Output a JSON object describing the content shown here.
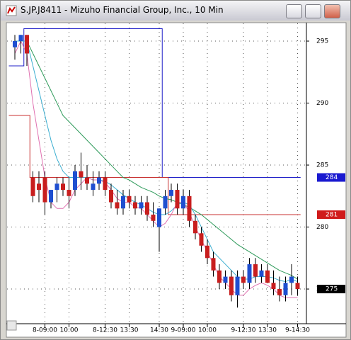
{
  "window_title": "S.JP.J8411 - Mizuho Financial Group, Inc., 10 Min",
  "chart_data": {
    "type": "candlestick",
    "categories": [
      null,
      null,
      null,
      null,
      null,
      "8-09:00",
      null,
      null,
      null,
      "10:00",
      null,
      null,
      null,
      null,
      null,
      "8-12:30",
      null,
      null,
      null,
      "13:30",
      null,
      null,
      null,
      null,
      "14:30",
      null,
      null,
      null,
      "9-09:00",
      null,
      null,
      null,
      "10:00",
      null,
      null,
      null,
      null,
      null,
      "9-12:30",
      null,
      null,
      null,
      "13:30",
      null,
      null,
      null,
      null,
      "9-14:30"
    ],
    "open": [
      294.5,
      295,
      295.5,
      284,
      283.5,
      284,
      282,
      283,
      283.5,
      283,
      283,
      284.5,
      284,
      283,
      283.5,
      284,
      283,
      282,
      281.5,
      282.5,
      282,
      281.5,
      282,
      281,
      280,
      281.5,
      282.5,
      283,
      281.5,
      282.5,
      280.5,
      279.5,
      278.5,
      277.5,
      276.5,
      275.5,
      276,
      274.5,
      276,
      275.5,
      277,
      276,
      276.5,
      275.5,
      275,
      274.5,
      275.5,
      275.5
    ],
    "high": [
      295.5,
      295.5,
      295.5,
      284.5,
      284.5,
      284.5,
      283,
      284,
      284,
      284,
      285,
      286,
      285,
      284.5,
      284.5,
      284.5,
      283.5,
      283,
      283,
      283,
      282.5,
      282.5,
      282.5,
      282,
      281.5,
      283,
      283.5,
      283.5,
      283,
      283,
      281,
      280,
      279,
      278,
      277,
      276.5,
      276.5,
      276.5,
      276.5,
      277.5,
      277.5,
      277,
      277,
      276.5,
      276,
      276,
      277,
      276
    ],
    "low": [
      293.5,
      294,
      293,
      282,
      282,
      281,
      281.5,
      282,
      282.5,
      281.5,
      282.5,
      283,
      283,
      282.5,
      283,
      282.5,
      281.5,
      281,
      281,
      281.5,
      281,
      281,
      280.5,
      280,
      278,
      281,
      282,
      281,
      281,
      280,
      279,
      278,
      277,
      276,
      275,
      275,
      274,
      273.5,
      275,
      275,
      275.5,
      275.5,
      275.5,
      274.5,
      274,
      274,
      274.5,
      274.5
    ],
    "close": [
      295,
      295.5,
      294,
      282.5,
      283,
      282,
      283,
      283.5,
      283,
      282.5,
      284.5,
      284,
      283.5,
      283.5,
      284,
      283,
      282,
      281.5,
      282.5,
      282,
      281.5,
      282,
      281,
      280.5,
      281.5,
      282.5,
      283,
      281.5,
      282.5,
      280.5,
      279.5,
      278.5,
      277.5,
      276.5,
      275.5,
      276,
      274.5,
      276,
      275.5,
      277,
      276,
      276.5,
      275.5,
      275,
      274.5,
      275.5,
      276,
      275
    ],
    "up_color": "#1f4fd0",
    "down_color": "#c81e1e",
    "series": [
      {
        "color": "#2020c8",
        "step": true,
        "values": [
          293,
          293,
          296,
          296,
          296,
          296,
          296,
          296,
          296,
          296,
          296,
          296,
          296,
          296,
          296,
          296,
          296,
          296,
          296,
          296,
          296,
          296,
          296,
          296,
          296,
          284,
          284,
          284,
          284,
          284,
          284,
          284,
          284,
          284,
          284,
          284,
          284,
          284,
          284,
          284,
          284,
          284,
          284,
          284,
          284,
          284,
          284,
          284
        ]
      },
      {
        "color": "#c83232",
        "step": true,
        "values": [
          289,
          289,
          289,
          284,
          284,
          284,
          284,
          284,
          284,
          284,
          284,
          284,
          284,
          284,
          284,
          284,
          284,
          284,
          284,
          284,
          284,
          284,
          284,
          284,
          284,
          284,
          281,
          281,
          281,
          281,
          281,
          281,
          281,
          281,
          281,
          281,
          281,
          281,
          281,
          281,
          281,
          281,
          281,
          281,
          281,
          281,
          281,
          281
        ]
      },
      {
        "color": "#2e9a5a",
        "values": [
          295,
          295,
          295,
          294,
          293,
          292,
          291,
          290,
          289,
          288.5,
          288,
          287.5,
          287,
          286.5,
          286,
          285.5,
          285,
          284.5,
          284,
          283.8,
          283.5,
          283.2,
          283,
          282.8,
          282.5,
          282.3,
          282.2,
          282,
          281.8,
          281.6,
          281.3,
          281,
          280.6,
          280.2,
          279.8,
          279.4,
          279,
          278.6,
          278.3,
          278,
          277.7,
          277.4,
          277.1,
          276.8,
          276.5,
          276.3,
          276.1,
          275.8
        ]
      },
      {
        "color": "#3aaed0",
        "values": [
          295,
          295,
          295,
          293,
          291,
          289,
          287,
          285.5,
          284.5,
          284,
          284,
          284,
          284,
          283.8,
          283.8,
          283.7,
          283.4,
          283,
          282.6,
          282.3,
          282,
          281.8,
          281.5,
          281.2,
          281,
          281,
          281.3,
          281.8,
          282,
          281.8,
          281,
          280,
          279,
          278,
          277.5,
          277,
          276.5,
          276,
          275.8,
          275.8,
          276,
          276,
          276,
          275.9,
          275.7,
          275.6,
          275.8,
          275.6
        ]
      },
      {
        "color": "#e070b0",
        "values": [
          294,
          295,
          294,
          290,
          287,
          284,
          282,
          281.5,
          281.5,
          282,
          283,
          283.5,
          284,
          283.8,
          283.8,
          283.6,
          283,
          282.3,
          282,
          282,
          281.6,
          281.5,
          281,
          280.5,
          280,
          280.3,
          281,
          282,
          282,
          281.2,
          280,
          279,
          278,
          277,
          276,
          275.5,
          275,
          274.5,
          274.5,
          275,
          275.3,
          275.5,
          275.3,
          275,
          274.5,
          274.3,
          274.3,
          274.3
        ]
      }
    ],
    "price_labels": [
      {
        "value": 284,
        "color": "#1a1ad0"
      },
      {
        "value": 281,
        "color": "#d01a1a"
      },
      {
        "value": 275,
        "color": "#000000"
      }
    ],
    "ylim": [
      272.26,
      296.43
    ],
    "yticks": [
      275,
      280,
      285,
      290,
      295
    ],
    "grid": true
  }
}
